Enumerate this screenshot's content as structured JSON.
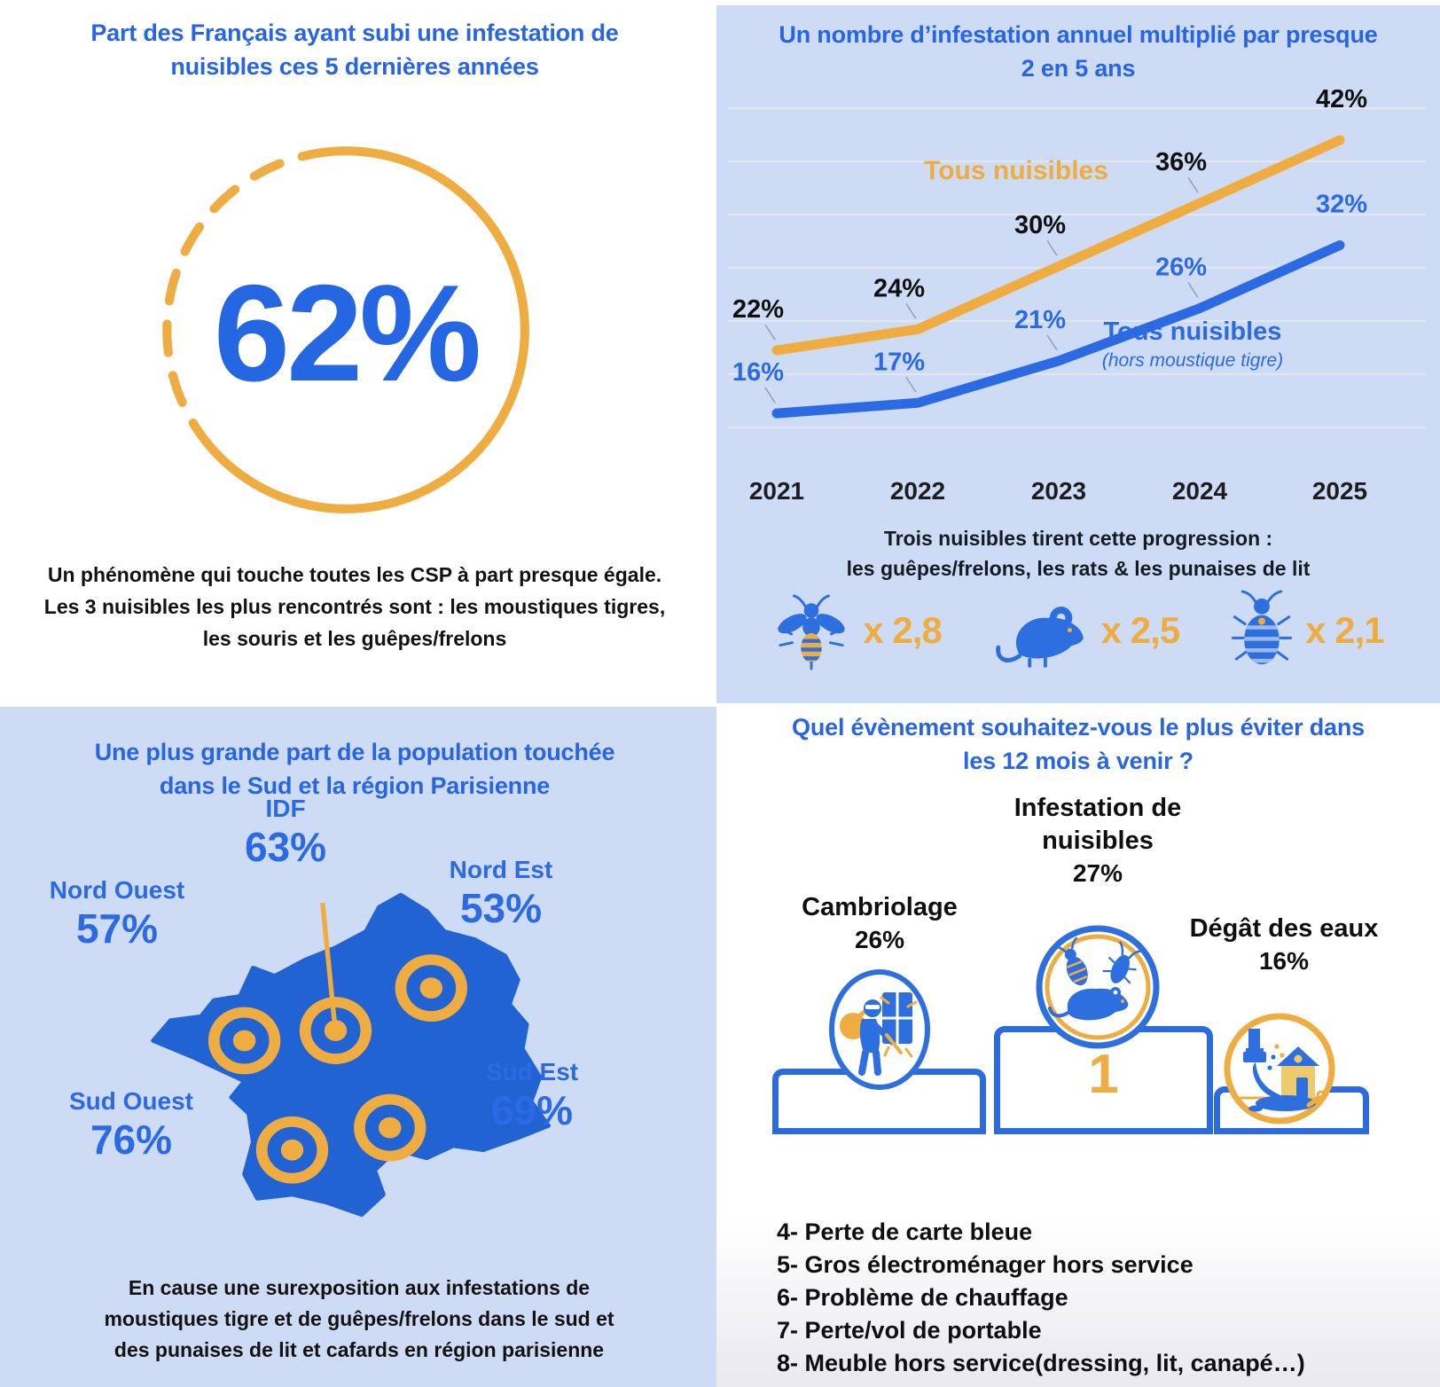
{
  "colors": {
    "panel_blue": "#cddbf4",
    "brand_blue": "#2765e3",
    "line_blue": "#2b6ae3",
    "map_blue": "#2263d3",
    "accent_yellow": "#efac41",
    "text_dark": "#121212"
  },
  "q1": {
    "title_line1": "Part des Français ayant subi une infestation de",
    "title_line2": "nuisibles ces 5 dernières années",
    "value": "62%",
    "note_line1": "Un phénomène qui touche toutes les CSP à part presque égale.",
    "note_line2": "Les 3 nuisibles les plus rencontrés sont : les moustiques tigres,",
    "note_line3": "les souris et les guêpes/frelons"
  },
  "q2": {
    "title_line1": "Un nombre d’infestation annuel multiplié par presque",
    "title_line2": "2 en 5 ans",
    "note_line1": "Trois nuisibles tirent cette progression :",
    "note_line2": "les guêpes/frelons, les rats & les punaises de lit",
    "multipliers": [
      {
        "icon": "wasp-icon",
        "label": "x 2,8"
      },
      {
        "icon": "rat-icon",
        "label": "x 2,5"
      },
      {
        "icon": "bedbug-icon",
        "label": "x 2,1"
      }
    ]
  },
  "q3": {
    "title_line1": "Une plus grande part de la population touchée",
    "title_line2": "dans le Sud et la région Parisienne",
    "regions": [
      {
        "name": "IDF",
        "value": "63%"
      },
      {
        "name": "Nord Ouest",
        "value": "57%"
      },
      {
        "name": "Nord Est",
        "value": "53%"
      },
      {
        "name": "Sud Ouest",
        "value": "76%"
      },
      {
        "name": "Sud Est",
        "value": "69%"
      }
    ],
    "note_line1": "En cause une surexposition aux infestations de",
    "note_line2": "moustiques tigre et de guêpes/frelons dans le sud et",
    "note_line3": "des punaises de lit et cafards en région parisienne"
  },
  "q4": {
    "title_line1": "Quel évènement souhaitez-vous le plus éviter dans",
    "title_line2": "les 12 mois à venir ?",
    "podium_rank1": "1",
    "top3": [
      {
        "label": "Cambriolage",
        "value": "26%",
        "icon": "burglar-icon"
      },
      {
        "label_line1": "Infestation de",
        "label_line2": "nuisibles",
        "value": "27%",
        "icon": "pests-icon"
      },
      {
        "label": "Dégât des eaux",
        "value": "16%",
        "icon": "water-damage-icon"
      }
    ],
    "others": [
      "4- Perte de carte bleue",
      "5- Gros électroménager hors service",
      "6- Problème de chauffage",
      "7- Perte/vol de portable",
      "8- Meuble hors service(dressing, lit, canapé…)"
    ]
  },
  "chart_data": [
    {
      "type": "big-number",
      "panel": "top-left",
      "title": "Part des Français ayant subi une infestation de nuisibles ces 5 dernières années",
      "value_percent": 62,
      "note": "Un phénomène qui touche toutes les CSP à part presque égale. Les 3 nuisibles les plus rencontrés sont : les moustiques tigres, les souris et les guêpes/frelons"
    },
    {
      "type": "line",
      "panel": "top-right",
      "title": "Un nombre d’infestation annuel multiplié par presque 2 en 5 ans",
      "x": [
        2021,
        2022,
        2023,
        2024,
        2025
      ],
      "unit": "%",
      "series": [
        {
          "name": "Tous nuisibles",
          "subname": "",
          "color": "#efac41",
          "values": [
            22,
            24,
            30,
            36,
            42
          ]
        },
        {
          "name": "Tous nuisibles",
          "subname": "(hors moustique tigre)",
          "color": "#2b6ae3",
          "values": [
            16,
            17,
            21,
            26,
            32
          ]
        }
      ],
      "ylim": [
        12,
        46
      ],
      "grid": true,
      "legend_position": "inline",
      "annotation": "Trois nuisibles tirent cette progression : les guêpes/frelons, les rats & les punaises de lit",
      "multipliers": [
        {
          "pest": "guêpes/frelons",
          "factor": "x 2,8"
        },
        {
          "pest": "rats",
          "factor": "x 2,5"
        },
        {
          "pest": "punaises de lit",
          "factor": "x 2,1"
        }
      ]
    },
    {
      "type": "map",
      "panel": "bottom-left",
      "title": "Une plus grande part de la population touchée dans le Sud et la région Parisienne",
      "categories": [
        "IDF",
        "Nord Ouest",
        "Nord Est",
        "Sud Ouest",
        "Sud Est"
      ],
      "values": [
        63,
        57,
        53,
        76,
        69
      ],
      "unit": "%",
      "note": "En cause une surexposition aux infestations de moustiques tigre et de guêpes/frelons dans le sud et des punaises de lit et cafards en région parisienne"
    },
    {
      "type": "ranking",
      "panel": "bottom-right",
      "title": "Quel évènement souhaitez-vous le plus éviter dans les 12 mois à venir ?",
      "unit": "%",
      "items": [
        {
          "rank": 1,
          "label": "Infestation de nuisibles",
          "value": 27
        },
        {
          "rank": 2,
          "label": "Cambriolage",
          "value": 26
        },
        {
          "rank": 3,
          "label": "Dégât des eaux",
          "value": 16
        },
        {
          "rank": 4,
          "label": "Perte de carte bleue"
        },
        {
          "rank": 5,
          "label": "Gros électroménager hors service"
        },
        {
          "rank": 6,
          "label": "Problème de chauffage"
        },
        {
          "rank": 7,
          "label": "Perte/vol de portable"
        },
        {
          "rank": 8,
          "label": "Meuble hors service(dressing, lit, canapé…)"
        }
      ]
    }
  ]
}
